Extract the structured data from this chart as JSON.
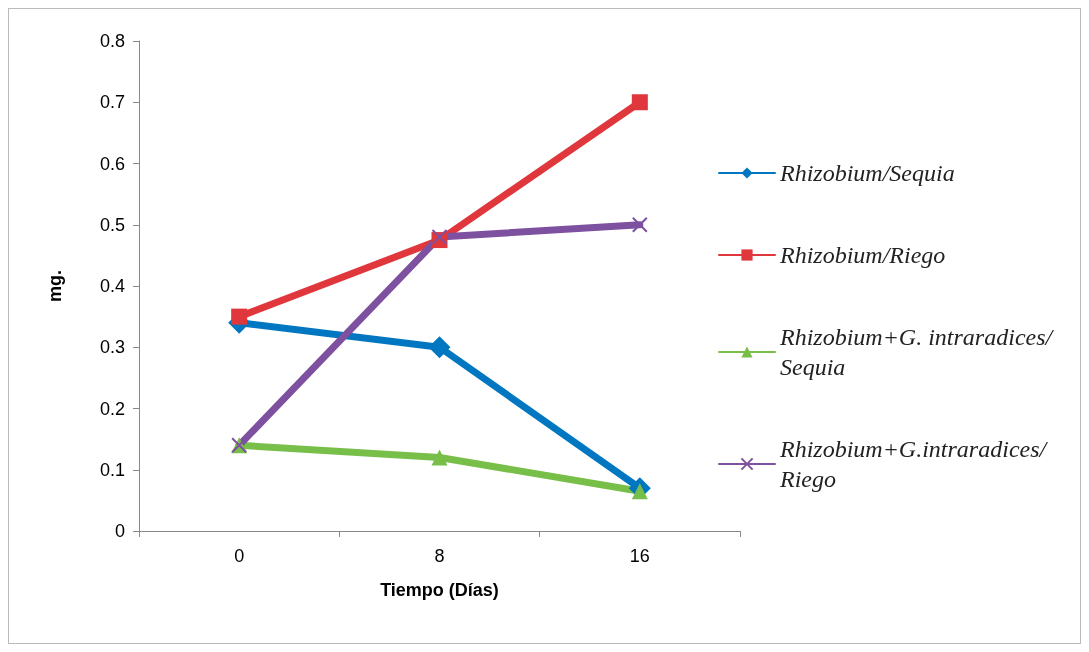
{
  "chart_data": {
    "type": "line",
    "xlabel": "Tiempo (Días)",
    "ylabel": "mg.",
    "categories": [
      "0",
      "8",
      "16"
    ],
    "series": [
      {
        "name": "Rhizobium/Sequia",
        "color": "#0077c0",
        "marker": "diamond",
        "values": [
          0.34,
          0.3,
          0.07
        ]
      },
      {
        "name": "Rhizobium/Riego",
        "color": "#e0373d",
        "marker": "square",
        "values": [
          0.35,
          0.475,
          0.7
        ]
      },
      {
        "name": "Rhizobium+G. intraradices/Sequia",
        "color": "#78bf4a",
        "marker": "triangle",
        "values": [
          0.14,
          0.12,
          0.065
        ]
      },
      {
        "name": "Rhizobium+G.intraradices/Riego",
        "color": "#7e50a0",
        "marker": "cross",
        "values": [
          0.14,
          0.48,
          0.5
        ]
      }
    ],
    "ylim": [
      0,
      0.8
    ],
    "yticks": [
      0,
      0.1,
      0.2,
      0.3,
      0.4,
      0.5,
      0.6,
      0.7,
      0.8
    ],
    "grid": false,
    "legend": "right",
    "line_style": "solid"
  }
}
